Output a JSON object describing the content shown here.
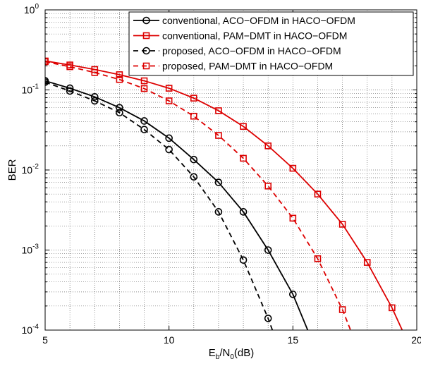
{
  "chart_data": {
    "type": "line",
    "title": "",
    "xlabel": {
      "main": "E",
      "sub1": "b",
      "mid": "/N",
      "sub2": "0",
      "unit": "(dB)"
    },
    "ylabel": "BER",
    "xlim": [
      5,
      20
    ],
    "ylim": [
      0.0001,
      1
    ],
    "yscale": "log",
    "grid": true,
    "legend_position": "top-right",
    "x_ticks": [
      "5",
      "10",
      "15",
      "20"
    ],
    "y_ticks": [
      {
        "base": "10",
        "exp": "0",
        "value": 1
      },
      {
        "base": "10",
        "exp": "-1",
        "value": 0.1
      },
      {
        "base": "10",
        "exp": "-2",
        "value": 0.01
      },
      {
        "base": "10",
        "exp": "-3",
        "value": 0.001
      },
      {
        "base": "10",
        "exp": "-4",
        "value": 0.0001
      }
    ],
    "series": [
      {
        "name": "conventional, ACO−OFDM in HACO−OFDM",
        "color": "#000000",
        "dash": "solid",
        "marker": "circle",
        "x": [
          5,
          6,
          7,
          8,
          9,
          10,
          11,
          12,
          13,
          14,
          15,
          16
        ],
        "y": [
          0.13,
          0.105,
          0.082,
          0.06,
          0.041,
          0.025,
          0.0135,
          0.007,
          0.003,
          0.001,
          0.00028,
          5e-05
        ],
        "marker_count": 11
      },
      {
        "name": "conventional, PAM−DMT in HACO−OFDM",
        "color": "#dd0000",
        "dash": "solid",
        "marker": "square",
        "x": [
          5,
          6,
          7,
          8,
          9,
          10,
          11,
          12,
          13,
          14,
          15,
          16,
          17,
          18,
          19,
          20
        ],
        "y": [
          0.23,
          0.205,
          0.18,
          0.155,
          0.13,
          0.105,
          0.079,
          0.055,
          0.035,
          0.02,
          0.0105,
          0.005,
          0.0021,
          0.0007,
          0.00019,
          4e-05
        ],
        "marker_count": 15
      },
      {
        "name": "proposed, ACO−OFDM in HACO−OFDM",
        "color": "#000000",
        "dash": "dashed",
        "marker": "circle",
        "x": [
          5,
          6,
          7,
          8,
          9,
          10,
          11,
          12,
          13,
          14,
          15
        ],
        "y": [
          0.125,
          0.097,
          0.073,
          0.052,
          0.032,
          0.018,
          0.0082,
          0.003,
          0.00075,
          0.00014,
          2e-05
        ],
        "marker_count": 10
      },
      {
        "name": "proposed, PAM−DMT in HACO−OFDM",
        "color": "#dd0000",
        "dash": "dashed",
        "marker": "square",
        "x": [
          5,
          6,
          7,
          8,
          9,
          10,
          11,
          12,
          13,
          14,
          15,
          16,
          17,
          18
        ],
        "y": [
          0.225,
          0.195,
          0.165,
          0.135,
          0.104,
          0.073,
          0.047,
          0.027,
          0.014,
          0.0063,
          0.0025,
          0.00078,
          0.00018,
          3e-05
        ],
        "marker_count": 13
      }
    ]
  }
}
